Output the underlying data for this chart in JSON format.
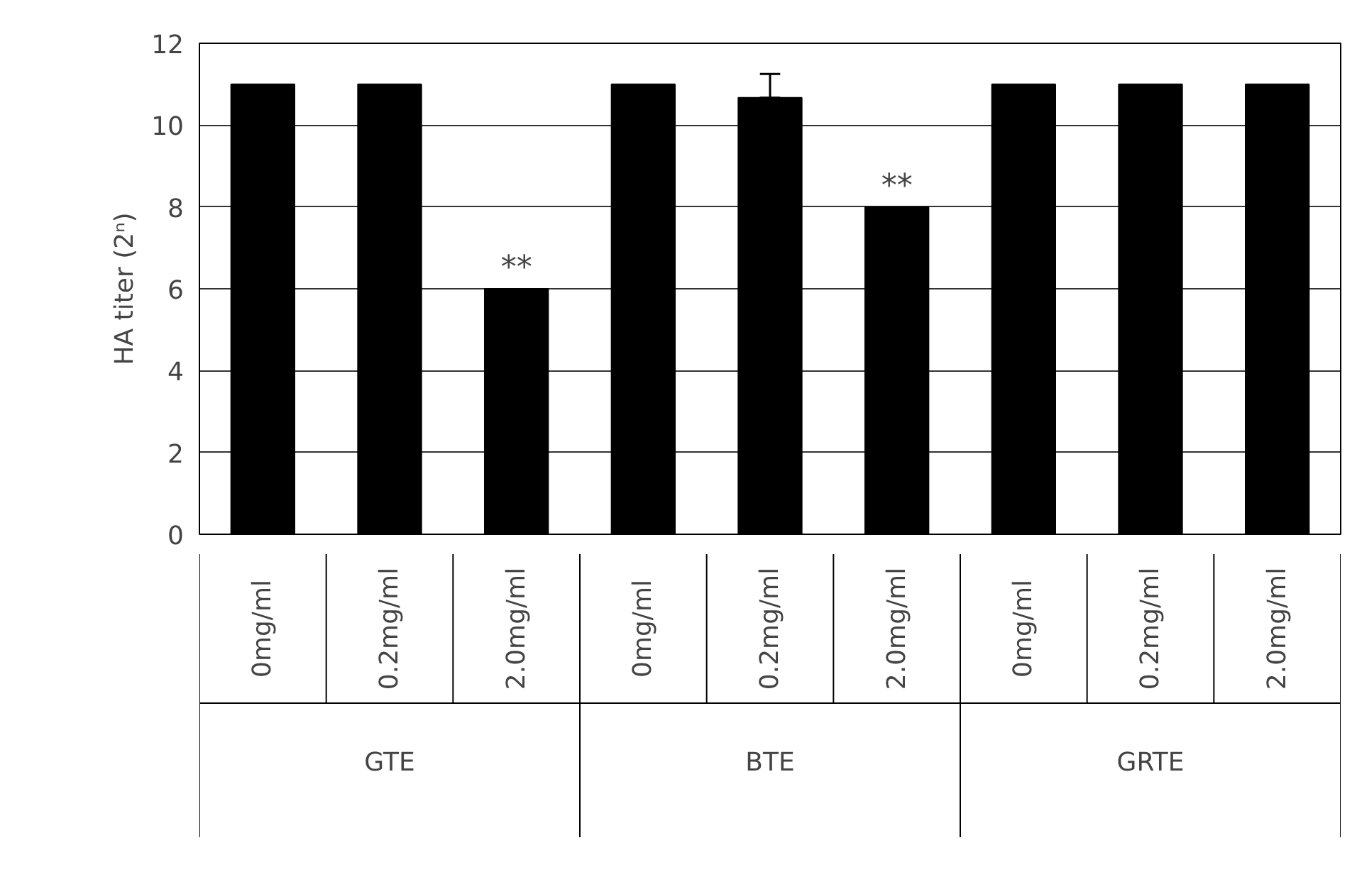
{
  "chart_data": {
    "type": "bar",
    "ylabel": "HA titer (2ⁿ)",
    "categories": [
      "0mg/ml",
      "0.2mg/ml",
      "2.0mg/ml",
      "0mg/ml",
      "0.2mg/ml",
      "2.0mg/ml",
      "0mg/ml",
      "0.2mg/ml",
      "2.0mg/ml"
    ],
    "values": [
      11,
      11,
      6,
      11,
      10.67,
      8,
      11,
      11,
      11
    ],
    "errors": [
      null,
      null,
      null,
      null,
      [
        10.67,
        11.25
      ],
      null,
      null,
      null,
      null
    ],
    "color": "#000000",
    "ylim": [
      0,
      12
    ],
    "yticks": [
      0,
      2,
      4,
      6,
      8,
      10,
      12
    ],
    "grid": "y",
    "value_labels": [
      null,
      null,
      "**",
      null,
      null,
      "**",
      null,
      null,
      null
    ],
    "annotations": [
      "GTE",
      "BTE",
      "GRTE"
    ]
  }
}
